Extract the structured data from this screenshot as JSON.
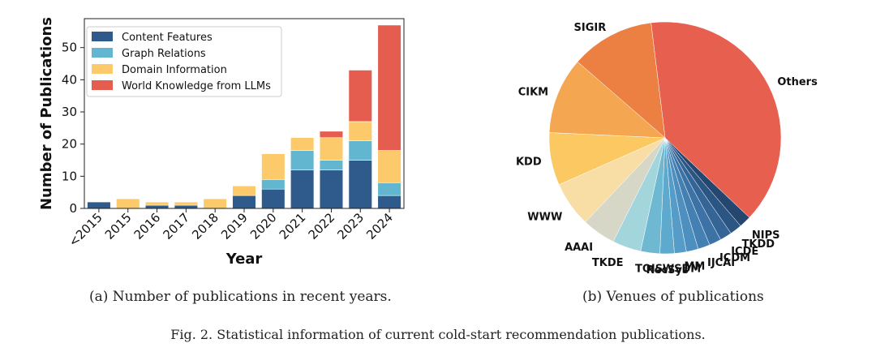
{
  "caption_a": "(a) Number of publications in recent years.",
  "caption_b": "(b) Venues of publications",
  "figure_caption": "Fig. 2.  Statistical information of current cold-start recommendation publications.",
  "chart_data": [
    {
      "type": "bar",
      "stacked": true,
      "title": "",
      "xlabel": "Year",
      "ylabel": "Number of Publications",
      "ylim": [
        0,
        59
      ],
      "yticks": [
        0,
        10,
        20,
        30,
        40,
        50
      ],
      "grid": false,
      "legend_position": "top-left",
      "categories": [
        "<2015",
        "2015",
        "2016",
        "2017",
        "2018",
        "2019",
        "2020",
        "2021",
        "2022",
        "2023",
        "2024"
      ],
      "series": [
        {
          "name": "Content Features",
          "color": "#2e5a8c",
          "values": [
            2,
            0,
            1,
            1,
            0,
            4,
            6,
            12,
            12,
            15,
            4
          ]
        },
        {
          "name": "Graph Relations",
          "color": "#62b6cf",
          "values": [
            0,
            0,
            0,
            0,
            0,
            0,
            3,
            6,
            3,
            6,
            4
          ]
        },
        {
          "name": "Domain Information",
          "color": "#fcc96b",
          "values": [
            0,
            3,
            1,
            1,
            3,
            3,
            8,
            4,
            7,
            6,
            10
          ]
        },
        {
          "name": "World Knowledge from LLMs",
          "color": "#e55d4f",
          "values": [
            0,
            0,
            0,
            0,
            0,
            0,
            0,
            0,
            2,
            16,
            39
          ]
        }
      ]
    },
    {
      "type": "pie",
      "title": "",
      "slices": [
        {
          "label": "Others",
          "value": 117,
          "color": "#e75f4f"
        },
        {
          "label": "NIPS",
          "value": 5,
          "color": "#24466f"
        },
        {
          "label": "TKDD",
          "value": 5,
          "color": "#2b5583"
        },
        {
          "label": "ICDE",
          "value": 5,
          "color": "#346596"
        },
        {
          "label": "ICDM",
          "value": 5,
          "color": "#3c72a5"
        },
        {
          "label": "IJCAI",
          "value": 5,
          "color": "#4580b2"
        },
        {
          "label": "MM",
          "value": 5,
          "color": "#4d8fbe"
        },
        {
          "label": "WSDM",
          "value": 5,
          "color": "#559dc8"
        },
        {
          "label": "RecSys",
          "value": 6,
          "color": "#5eaace"
        },
        {
          "label": "TOIS",
          "value": 8,
          "color": "#6eb8d2"
        },
        {
          "label": "TKDE",
          "value": 12,
          "color": "#a3d5dd"
        },
        {
          "label": "AAAI",
          "value": 14,
          "color": "#d6d7c6"
        },
        {
          "label": "WWW",
          "value": 19,
          "color": "#f8dda4"
        },
        {
          "label": "KDD",
          "value": 22,
          "color": "#fbc862"
        },
        {
          "label": "CIKM",
          "value": 32,
          "color": "#f4a650"
        },
        {
          "label": "SIGIR",
          "value": 35,
          "color": "#ec8043"
        }
      ]
    }
  ]
}
